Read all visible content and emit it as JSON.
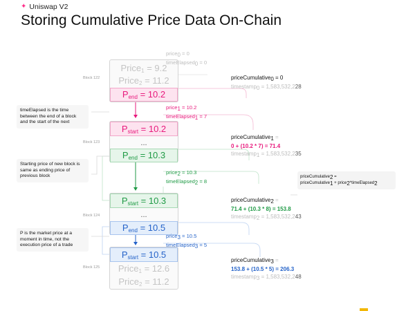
{
  "brand": "Uniswap V2",
  "title": "Storing Cumulative Price Data On-Chain",
  "block_labels": [
    "Block 122",
    "Block 123",
    "Block 124",
    "Block 125"
  ],
  "blocks": [
    {
      "rows": [
        {
          "sym": "Price",
          "sub": "1",
          "val": " = 9.2"
        },
        {
          "sym": "Price",
          "sub": "2",
          "val": " = 11.2"
        },
        {
          "sym": "P",
          "sub": "end",
          "val": " = 10.2"
        }
      ]
    },
    {
      "rows": [
        {
          "sym": "P",
          "sub": "start",
          "val": " = 10.2"
        },
        {
          "text": "..."
        },
        {
          "sym": "P",
          "sub": "end",
          "val": " = 10.3"
        }
      ]
    },
    {
      "rows": [
        {
          "sym": "P",
          "sub": "start",
          "val": " = 10.3"
        },
        {
          "text": "..."
        },
        {
          "sym": "P",
          "sub": "end",
          "val": " = 10.5"
        }
      ]
    },
    {
      "rows": [
        {
          "sym": "P",
          "sub": "start",
          "val": " = 10.5"
        },
        {
          "sym": "Price",
          "sub": "1",
          "val": " = 12.6"
        },
        {
          "sym": "Price",
          "sub": "2",
          "val": " = 11.2"
        }
      ]
    }
  ],
  "notes": [
    "timeElapsed is the time between the end of a block and the start of the next",
    "Starting price of new block is same as ending price of previous block",
    "P is the market price at a moment in time, not the execution price of a trade"
  ],
  "intervals": [
    {
      "price": "price",
      "sub": "0",
      "pval": " = 0",
      "time": "timeElapsed",
      "tsub": "0",
      "tval": " = 0"
    },
    {
      "price": "price",
      "sub": "1",
      "pval": " = 10.2",
      "time": "timeElapsed",
      "tsub": "1",
      "tval": " = 7"
    },
    {
      "price": "price",
      "sub": "2",
      "pval": " = 10.3",
      "time": "timeElapsed",
      "tsub": "2",
      "tval": " = 8"
    },
    {
      "price": "price",
      "sub": "3",
      "pval": " = 10.5",
      "time": "timeElapsed",
      "tsub": "3",
      "tval": " = 5"
    }
  ],
  "cumulatives": [
    {
      "name": "priceCumulative",
      "sub": "0",
      "eq": " = 0",
      "formula_a": "",
      "formula_b": "",
      "formula_c": "",
      "ts_label": "timestamp",
      "ts_sub": "0",
      "ts_val": " = 1,583,532,2",
      "ts_end": "28"
    },
    {
      "name": "priceCumulative",
      "sub": "1",
      "eq": " =",
      "formula_a": "0 + ",
      "formula_b": "(10.2 * 7)",
      "formula_c": " = 71.4",
      "ts_label": "timestamp",
      "ts_sub": "1",
      "ts_val": " = 1,583,532,2",
      "ts_end": "35"
    },
    {
      "name": "priceCumulative",
      "sub": "2",
      "eq": " =",
      "formula_a": "71.4 + ",
      "formula_b": "(10.3 * 8)",
      "formula_c": " = 153.8",
      "ts_label": "timestamp",
      "ts_sub": "2",
      "ts_val": " = 1,583,532,2",
      "ts_end": "43"
    },
    {
      "name": "priceCumulative",
      "sub": "3",
      "eq": " =",
      "formula_a": "153.8 + ",
      "formula_b": "(10.5 * 5)",
      "formula_c": " = 206.3",
      "ts_label": "timestamp",
      "ts_sub": "3",
      "ts_val": " = 1,583,532,2",
      "ts_end": "48"
    }
  ],
  "formula_box": {
    "line1": "priceCumulative",
    "line1_sub": "2",
    "line1_tail": " =",
    "line2_a": "priceCumulative",
    "line2_a_sub": "1",
    "line2_b": " + price",
    "line2_b_sub": "2",
    "line2_c": "*timeElapsed",
    "line2_c_sub": "2"
  },
  "colors": {
    "pink": "#e8197c",
    "green": "#1f9a45",
    "blue": "#2563c9",
    "purple": "#7b3fc4",
    "gray": "#bdbdbd"
  }
}
